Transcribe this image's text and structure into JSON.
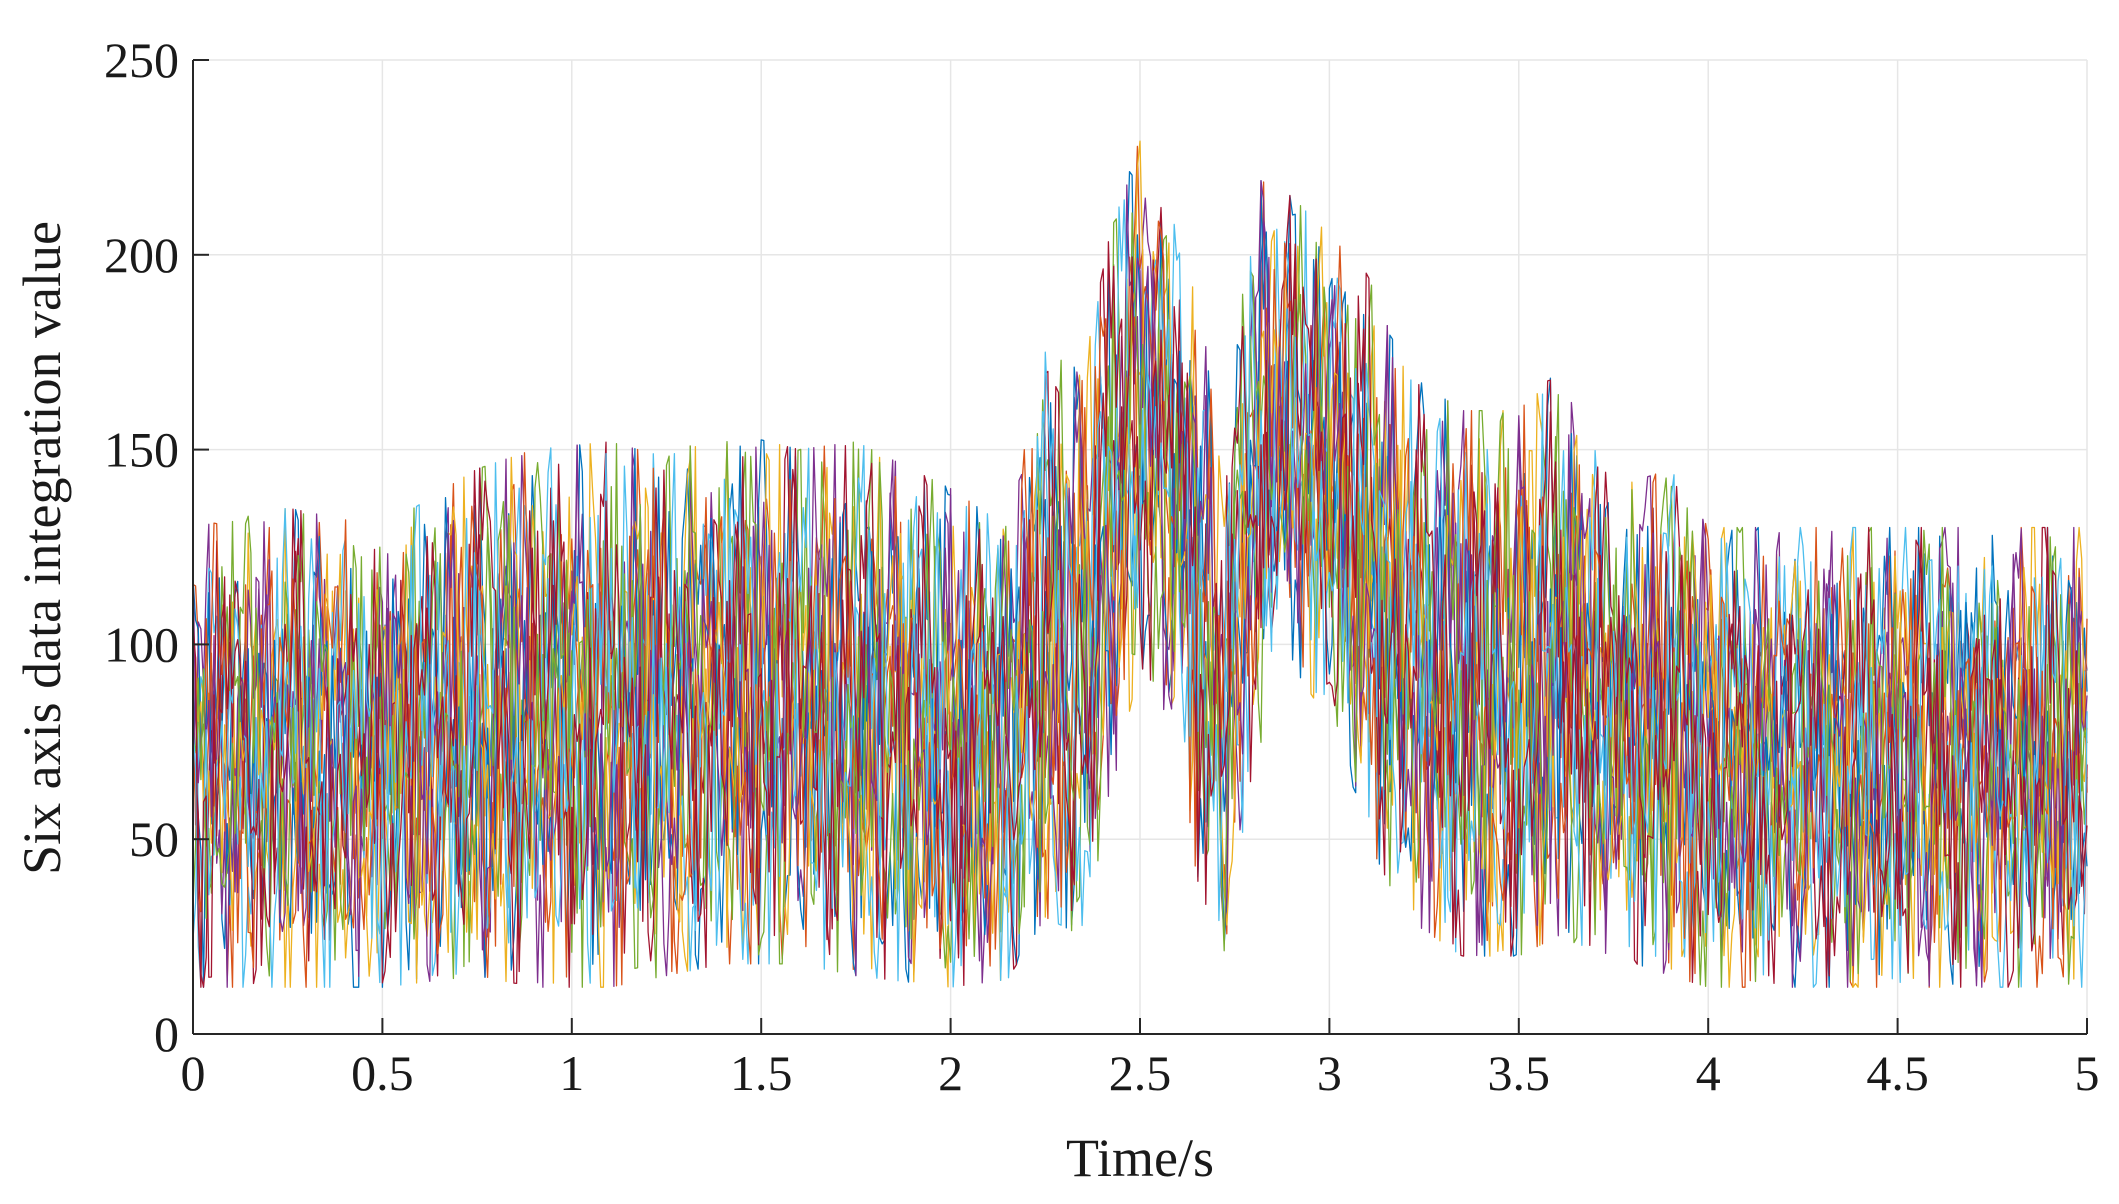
{
  "chart_data": {
    "type": "line",
    "title": "",
    "xlabel": "Time/s",
    "ylabel": "Six axis data integration value",
    "xlim": [
      0,
      5
    ],
    "ylim": [
      0,
      250
    ],
    "xticks": [
      0,
      0.5,
      1,
      1.5,
      2,
      2.5,
      3,
      3.5,
      4,
      4.5,
      5
    ],
    "xtick_labels": [
      "0",
      "0.5",
      "1",
      "1.5",
      "2",
      "2.5",
      "3",
      "3.5",
      "4",
      "4.5",
      "5"
    ],
    "yticks": [
      0,
      50,
      100,
      150,
      200,
      250
    ],
    "ytick_labels": [
      "0",
      "50",
      "100",
      "150",
      "200",
      "250"
    ],
    "grid": true,
    "legend": "none",
    "series_colors": [
      "#0072BD",
      "#D95319",
      "#EDB120",
      "#7E2F8E",
      "#77AC30",
      "#4DBEEE",
      "#A2142F"
    ],
    "series_count": 14,
    "band": {
      "x": [
        0,
        0.25,
        0.5,
        0.75,
        0.9,
        1.1,
        1.25,
        1.4,
        1.6,
        1.75,
        2.0,
        2.15,
        2.25,
        2.35,
        2.42,
        2.5,
        2.58,
        2.65,
        2.72,
        2.8,
        2.9,
        3.0,
        3.1,
        3.2,
        3.35,
        3.5,
        3.6,
        3.75,
        3.9,
        4.0,
        4.25,
        4.5,
        4.75,
        5.0
      ],
      "upper": [
        130,
        135,
        130,
        145,
        150,
        152,
        148,
        155,
        150,
        152,
        140,
        130,
        175,
        170,
        205,
        230,
        210,
        195,
        140,
        220,
        215,
        205,
        195,
        170,
        160,
        160,
        170,
        140,
        145,
        130,
        130,
        130,
        130,
        130
      ],
      "lower": [
        12,
        12,
        12,
        15,
        12,
        12,
        15,
        18,
        18,
        15,
        12,
        14,
        30,
        25,
        60,
        95,
        80,
        40,
        20,
        70,
        95,
        80,
        50,
        30,
        20,
        20,
        25,
        20,
        15,
        12,
        12,
        12,
        12,
        12
      ]
    }
  }
}
